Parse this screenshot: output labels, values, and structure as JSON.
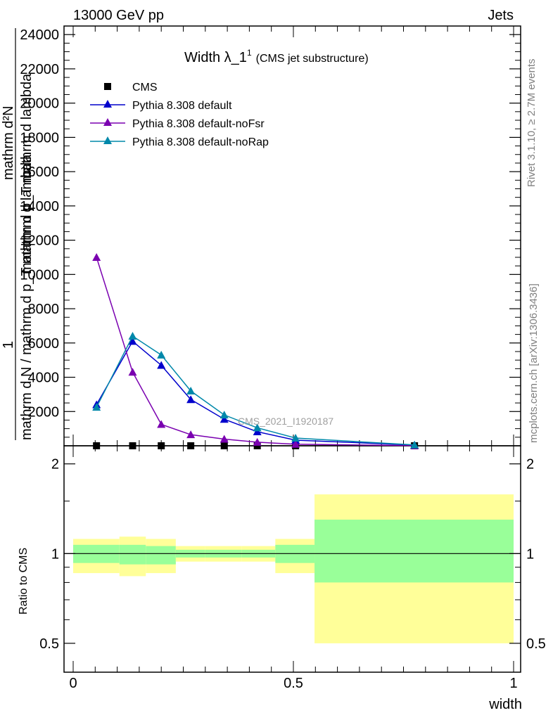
{
  "header": {
    "left": "13000 GeV pp",
    "right": "Jets"
  },
  "plot_title": {
    "main": "Width λ_1",
    "superscript": "1",
    "suffix": "(CMS jet substructure)"
  },
  "side_labels": {
    "rivet": "Rivet 3.1.10, ≥ 2.7M events",
    "mcplots": "mcplots.cern.ch [arXiv:1306.3436]"
  },
  "watermark": "CMS_2021_I1920187",
  "y_axis_title": {
    "line1": "1",
    "line2": "mathrm d N / mathrm d p_T mathrm d lambda",
    "line3": "mathrm d²N",
    "line4": "mathrm d p_T mathrm d lambda"
  },
  "ratio_axis_title": "Ratio to CMS",
  "x_axis_title": "width",
  "colors": {
    "cms": "#000000",
    "default": "#0000cc",
    "noFsr": "#7a00b0",
    "noRap": "#0088aa",
    "band_inner": "#99ff99",
    "band_outer": "#ffff99"
  },
  "chart_data": {
    "type": "line",
    "xlim": [
      0,
      1
    ],
    "ylim_main": [
      0,
      24500
    ],
    "ylim_ratio": [
      0.4,
      2.3
    ],
    "x_ticks": [
      "0",
      "0.5",
      "1"
    ],
    "y_ticks_main": [
      "2000",
      "4000",
      "6000",
      "8000",
      "10000",
      "12000",
      "14000",
      "16000",
      "18000",
      "20000",
      "22000",
      "24000"
    ],
    "y_ticks_main_values": [
      2000,
      4000,
      6000,
      8000,
      10000,
      12000,
      14000,
      16000,
      18000,
      20000,
      22000,
      24000
    ],
    "y_ticks_ratio": [
      "0.5",
      "1",
      "2"
    ],
    "y_ticks_ratio_values": [
      0.5,
      1,
      2
    ],
    "legend": [
      "CMS",
      "Pythia 8.308 default",
      "Pythia 8.308 default-noFsr",
      "Pythia 8.308 default-noRap"
    ],
    "series": [
      {
        "name": "CMS",
        "x": [
          0.053,
          0.135,
          0.2,
          0.267,
          0.343,
          0.418,
          0.505,
          0.775
        ],
        "y": [
          0,
          0,
          0,
          0,
          0,
          0,
          0,
          0
        ]
      },
      {
        "name": "Pythia 8.308 default",
        "x": [
          0.053,
          0.135,
          0.2,
          0.267,
          0.343,
          0.418,
          0.505,
          0.775
        ],
        "y": [
          2400,
          6100,
          4700,
          2700,
          1550,
          820,
          330,
          40
        ]
      },
      {
        "name": "Pythia 8.308 default-noFsr",
        "x": [
          0.053,
          0.135,
          0.2,
          0.267,
          0.343,
          0.418,
          0.505,
          0.775
        ],
        "y": [
          11000,
          4300,
          1250,
          650,
          390,
          210,
          90,
          10
        ]
      },
      {
        "name": "Pythia 8.308 default-noRap",
        "x": [
          0.053,
          0.135,
          0.2,
          0.267,
          0.343,
          0.418,
          0.505,
          0.775
        ],
        "y": [
          2250,
          6400,
          5300,
          3200,
          1800,
          1050,
          450,
          50
        ]
      }
    ],
    "ratio_bands": [
      {
        "x0": 0.0,
        "x1": 0.105,
        "inner": [
          0.93,
          1.07
        ],
        "outer": [
          0.86,
          1.12
        ]
      },
      {
        "x0": 0.105,
        "x1": 0.165,
        "inner": [
          0.92,
          1.07
        ],
        "outer": [
          0.84,
          1.14
        ]
      },
      {
        "x0": 0.165,
        "x1": 0.233,
        "inner": [
          0.92,
          1.06
        ],
        "outer": [
          0.86,
          1.12
        ]
      },
      {
        "x0": 0.233,
        "x1": 0.3,
        "inner": [
          0.97,
          1.03
        ],
        "outer": [
          0.94,
          1.06
        ]
      },
      {
        "x0": 0.3,
        "x1": 0.383,
        "inner": [
          0.97,
          1.03
        ],
        "outer": [
          0.94,
          1.06
        ]
      },
      {
        "x0": 0.383,
        "x1": 0.459,
        "inner": [
          0.97,
          1.03
        ],
        "outer": [
          0.94,
          1.06
        ]
      },
      {
        "x0": 0.459,
        "x1": 0.548,
        "inner": [
          0.93,
          1.07
        ],
        "outer": [
          0.86,
          1.12
        ]
      },
      {
        "x0": 0.548,
        "x1": 1.0,
        "inner": [
          0.8,
          1.3
        ],
        "outer": [
          0.5,
          1.58
        ]
      }
    ]
  }
}
